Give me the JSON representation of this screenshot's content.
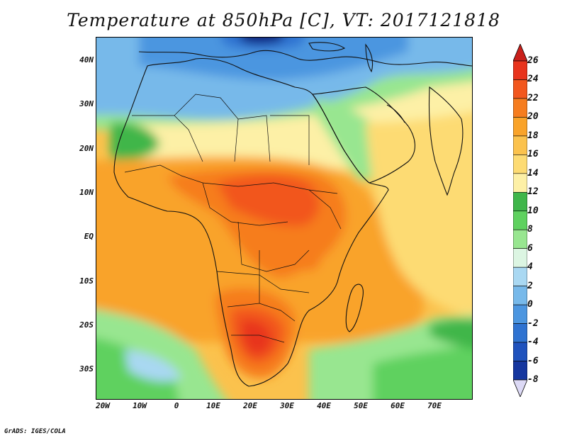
{
  "title": "Temperature at 850hPa [C], VT: 2017121818",
  "credit": "GrADS: IGES/COLA",
  "map": {
    "extent": {
      "lon_min": -22,
      "lon_max": 80,
      "lat_min": -37,
      "lat_max": 45
    },
    "lat_labels": [
      {
        "lat": 40,
        "text": "40N"
      },
      {
        "lat": 30,
        "text": "30N"
      },
      {
        "lat": 20,
        "text": "20N"
      },
      {
        "lat": 10,
        "text": "10N"
      },
      {
        "lat": 0,
        "text": "EQ"
      },
      {
        "lat": -10,
        "text": "10S"
      },
      {
        "lat": -20,
        "text": "20S"
      },
      {
        "lat": -30,
        "text": "30S"
      }
    ],
    "lon_labels": [
      {
        "lon": -20,
        "text": "20W"
      },
      {
        "lon": -10,
        "text": "10W"
      },
      {
        "lon": 0,
        "text": "0"
      },
      {
        "lon": 10,
        "text": "10E"
      },
      {
        "lon": 20,
        "text": "20E"
      },
      {
        "lon": 30,
        "text": "30E"
      },
      {
        "lon": 40,
        "text": "40E"
      },
      {
        "lon": 50,
        "text": "50E"
      },
      {
        "lon": 60,
        "text": "60E"
      },
      {
        "lon": 70,
        "text": "70E"
      }
    ]
  },
  "colorbar": {
    "labels": [
      "26",
      "24",
      "22",
      "20",
      "18",
      "16",
      "14",
      "12",
      "10",
      "8",
      "6",
      "4",
      "2",
      "0",
      "-2",
      "-4",
      "-6",
      "-8"
    ],
    "colors": [
      "#e8341d",
      "#f2571e",
      "#f67d1f",
      "#f9a32a",
      "#fbc24d",
      "#fddb73",
      "#fdf0a6",
      "#3fb64a",
      "#5fd15f",
      "#98e690",
      "#dcf5e2",
      "#a9d8f2",
      "#77b9ea",
      "#4c96e0",
      "#2f73d1",
      "#1f52bd",
      "#15369f",
      "#0d1f7a",
      "#dcd9f5"
    ],
    "top_color": "#c9201b",
    "bottom_color": "#dcd9f5"
  }
}
